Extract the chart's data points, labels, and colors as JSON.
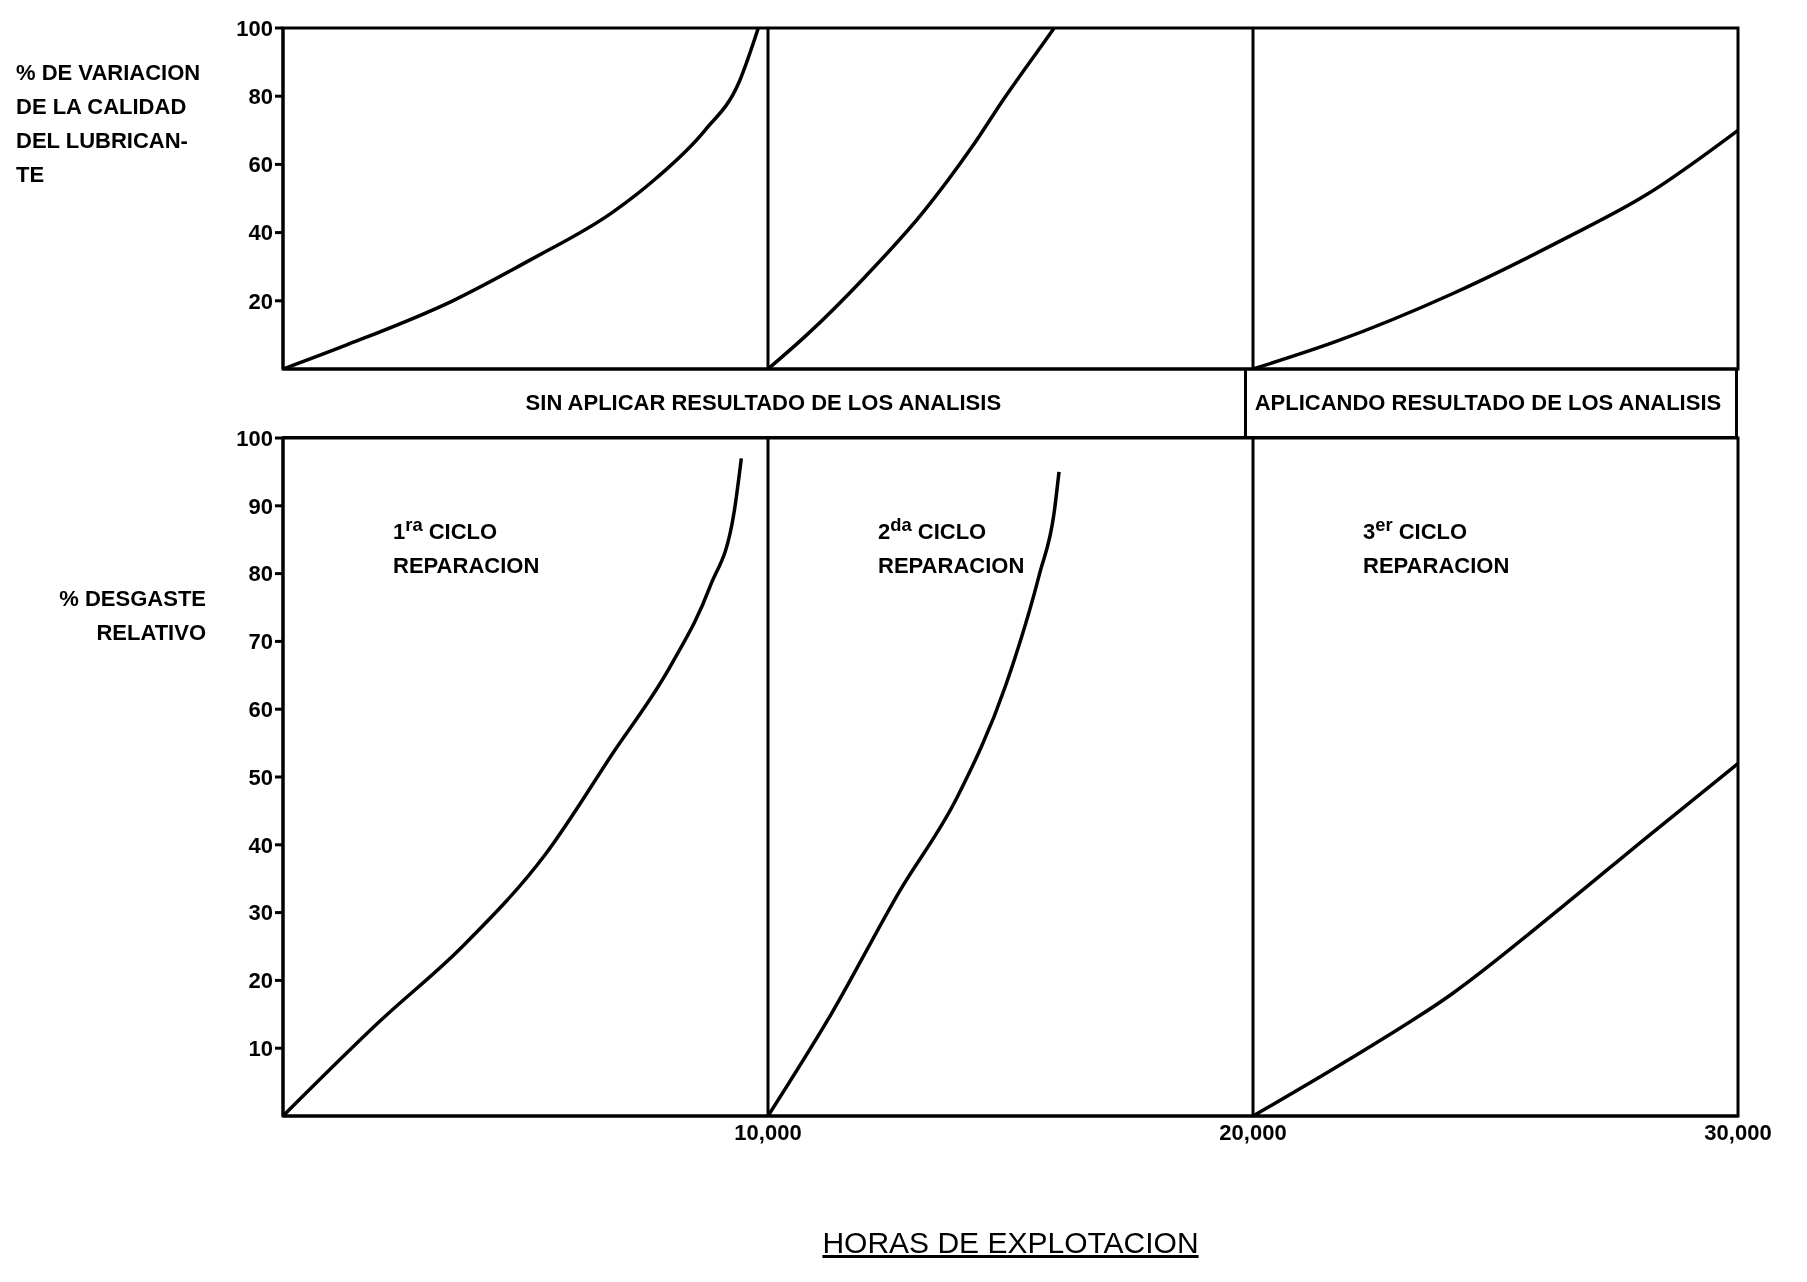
{
  "chart_data": [
    {
      "type": "line",
      "ylabel": "% DE VARIACION DE LA CALIDAD DEL LUBRICAN- TE",
      "xlim": [
        0,
        30000
      ],
      "ylim": [
        0,
        100
      ],
      "yticks": [
        20,
        40,
        60,
        80,
        100
      ],
      "tick_labels": "y",
      "grid": false,
      "marker": "none",
      "line_style": "solid",
      "ref_lines": [
        {
          "axis": "x",
          "value": 10000
        },
        {
          "axis": "x",
          "value": 20000
        }
      ],
      "series": [
        {
          "color": "#000000",
          "x": [
            0,
            1300,
            3500,
            5100,
            6800,
            7700,
            8700,
            9400,
            9800
          ],
          "values": [
            0,
            7,
            20,
            32,
            46,
            56,
            70,
            84,
            100
          ]
        },
        {
          "color": "#000000",
          "x": [
            10000,
            10800,
            12000,
            13200,
            14200,
            14900,
            15500,
            15900
          ],
          "values": [
            0,
            10,
            27,
            46,
            65,
            80,
            92,
            100
          ]
        },
        {
          "color": "#000000",
          "x": [
            20000,
            21700,
            24100,
            26400,
            28100,
            30000
          ],
          "values": [
            0,
            8,
            22,
            38,
            51,
            70
          ]
        }
      ]
    },
    {
      "type": "line",
      "ylabel": "% DESGASTE RELATIVO",
      "xlabel": "HORAS DE EXPLOTACION",
      "xlim": [
        0,
        30000
      ],
      "ylim": [
        0,
        100
      ],
      "xticks": [
        {
          "value": 10000,
          "label": "10,000"
        },
        {
          "value": 20000,
          "label": "20,000"
        },
        {
          "value": 30000,
          "label": "30,000"
        }
      ],
      "yticks": [
        10,
        20,
        30,
        40,
        50,
        60,
        70,
        80,
        90,
        100
      ],
      "grid": false,
      "marker": "none",
      "line_style": "solid",
      "annotations": [
        "SIN APLICAR RESULTADO DE LOS ANALISIS",
        "APLICANDO RESULTADO DE LOS ANALISIS",
        "1$^{ra}$ CICLO REPARACION",
        "2$^{da}$ CICLO REPARACION",
        "3$^{er}$ CICLO REPARACION"
      ],
      "ref_lines": [
        {
          "axis": "x",
          "value": 10000
        },
        {
          "axis": "x",
          "value": 20000
        }
      ],
      "series": [
        {
          "color": "#000000",
          "x": [
            0,
            2000,
            3700,
            5400,
            6800,
            8000,
            8800,
            9300,
            9450
          ],
          "values": [
            0,
            14,
            25,
            38.5,
            53.5,
            66.5,
            78,
            89,
            97
          ]
        },
        {
          "color": "#000000",
          "x": [
            10000,
            11300,
            12700,
            13900,
            14900,
            15600,
            15900,
            16000
          ],
          "values": [
            0,
            15,
            33,
            47,
            63.5,
            80,
            89,
            95
          ]
        },
        {
          "color": "#000000",
          "x": [
            20000,
            21900,
            24100,
            26400,
            28100,
            30000
          ],
          "values": [
            0,
            8,
            18,
            31,
            41,
            52
          ]
        }
      ]
    }
  ]
}
